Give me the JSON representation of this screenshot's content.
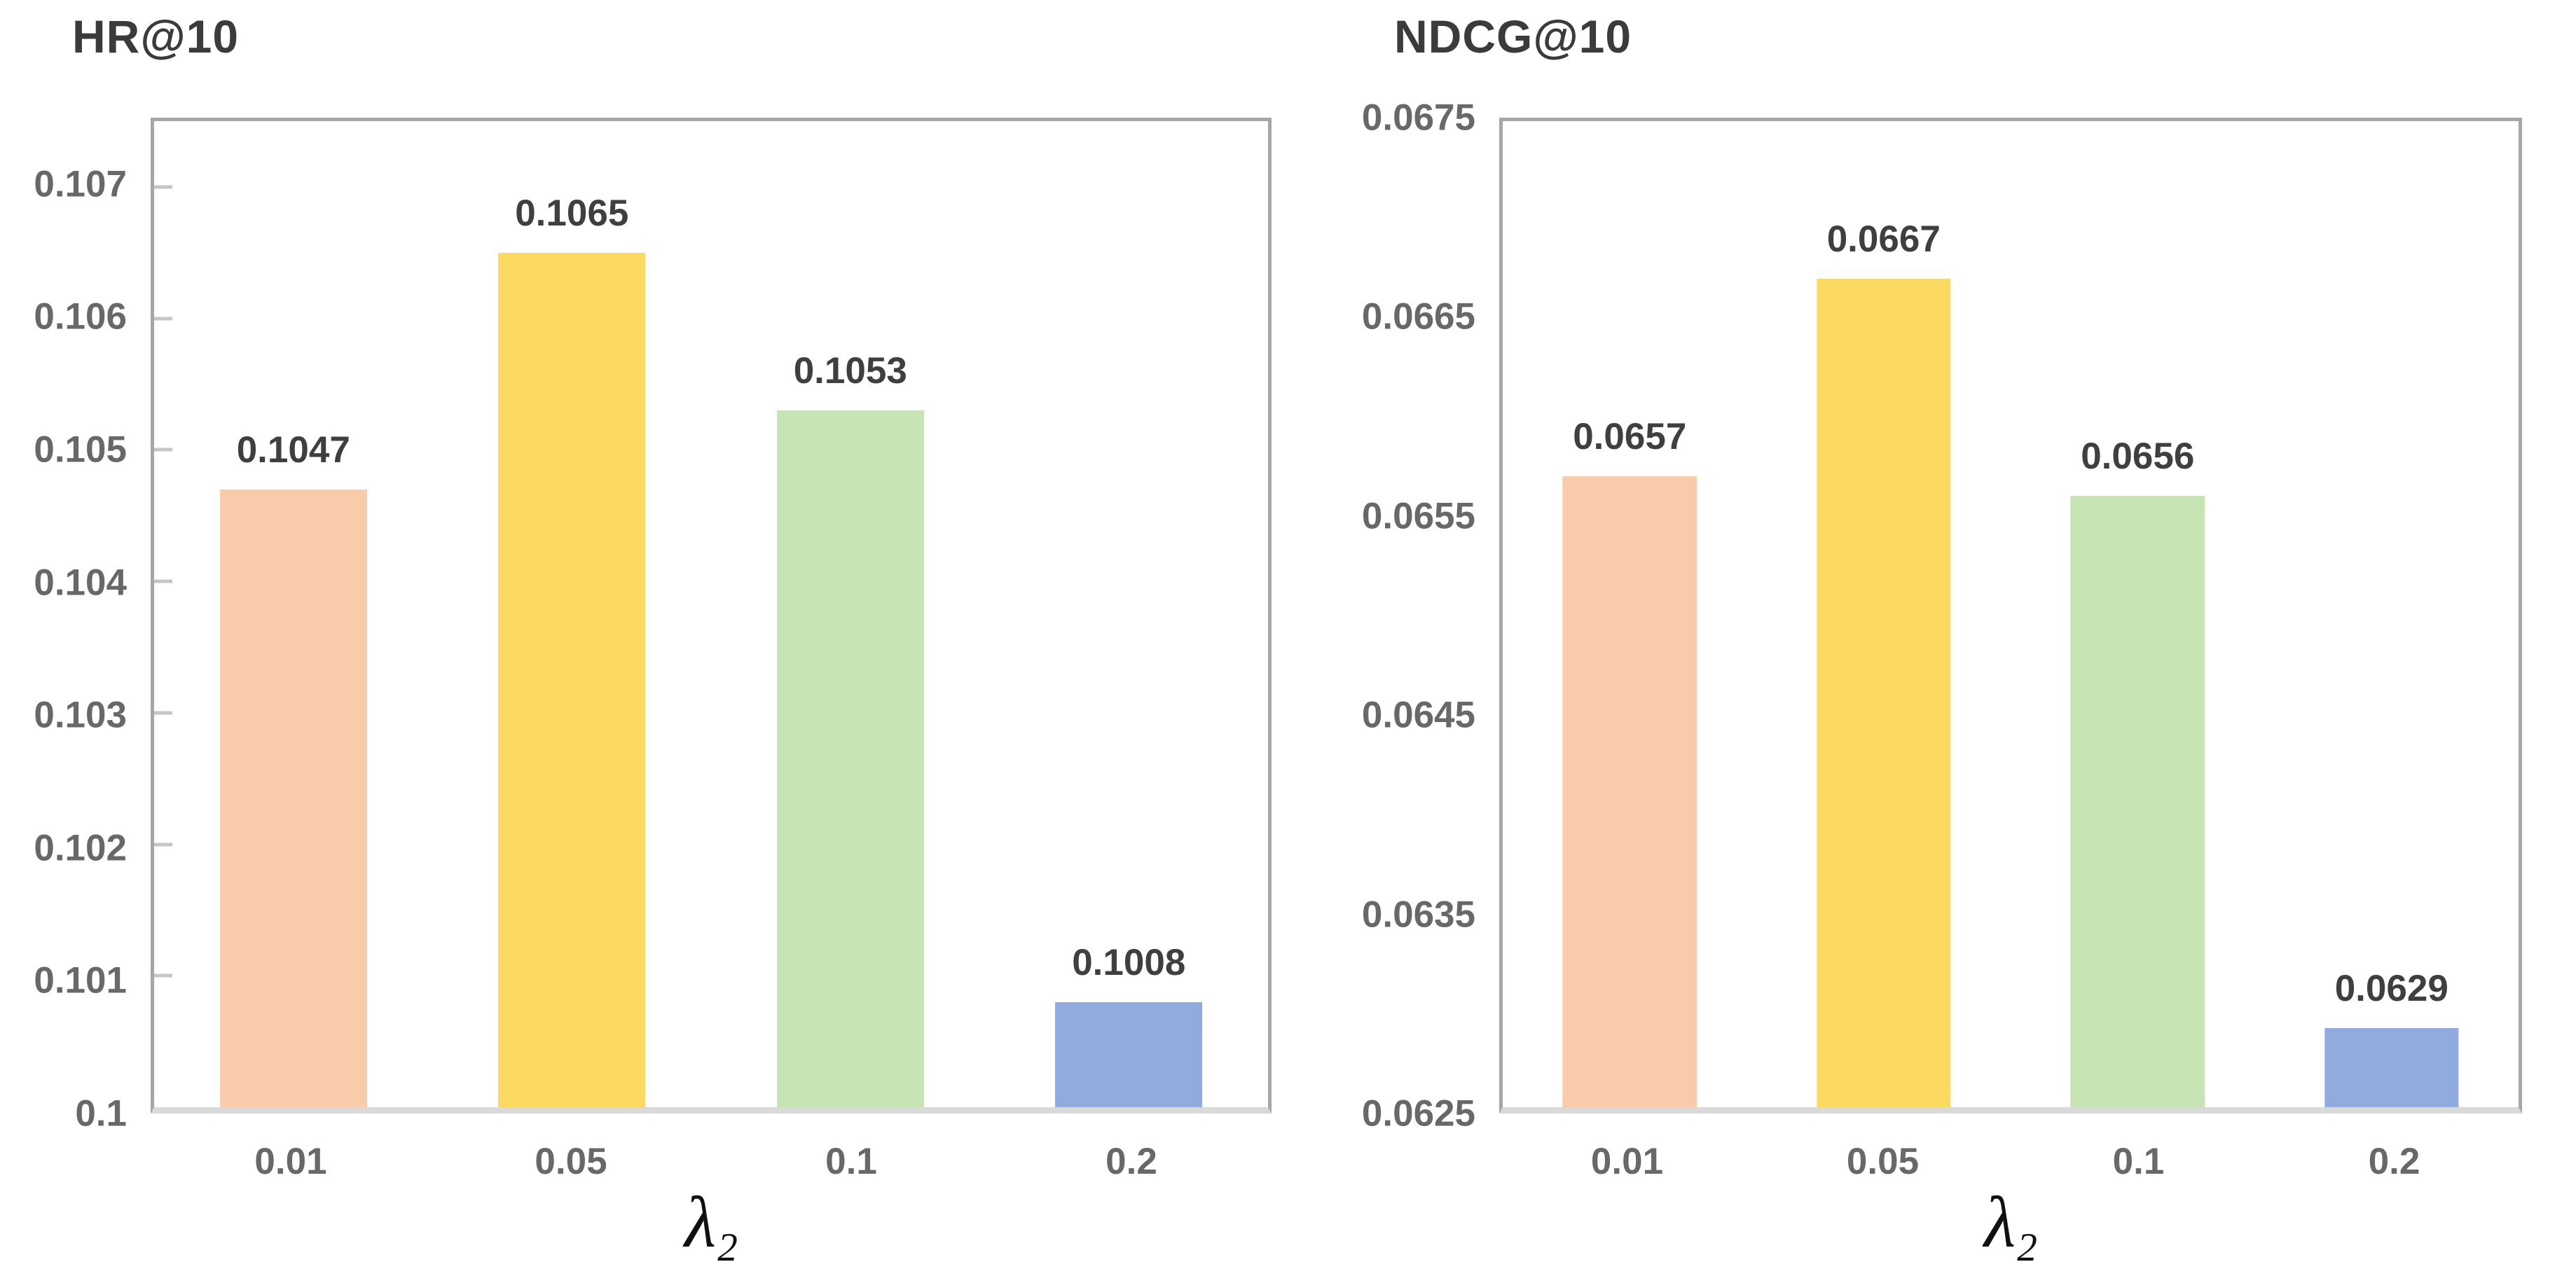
{
  "figure": {
    "background": "#ffffff"
  },
  "style": {
    "axis_box_color": "#a6a6a6",
    "baseline_color": "#d9d9d9",
    "tick_mark_color": "#c6c6c6",
    "axis_label_color": "#686868",
    "value_label_color": "#3f3f3f",
    "title_color": "#3b3b3b",
    "x_axis_title_color": "#101010"
  },
  "chart_data": [
    {
      "type": "bar",
      "title": "HR@10",
      "categories": [
        "0.01",
        "0.05",
        "0.1",
        "0.2"
      ],
      "values": [
        0.1047,
        0.1065,
        0.1053,
        0.1008
      ],
      "bar_labels": [
        "0.1047",
        "0.1065",
        "0.1053",
        "0.1008"
      ],
      "bar_colors": [
        "#f8ccab",
        "#fcd960",
        "#c8e4b4",
        "#92abdf"
      ],
      "xlabel_base": "λ",
      "xlabel_sub": "2",
      "ylim": [
        0.1,
        0.1075
      ],
      "ytick_values": [
        0.1,
        0.101,
        0.102,
        0.103,
        0.104,
        0.105,
        0.106,
        0.107
      ],
      "yticks": [
        "0.1",
        "0.101",
        "0.102",
        "0.103",
        "0.104",
        "0.105",
        "0.106",
        "0.107"
      ],
      "grid": false,
      "legend": "none",
      "tick_marks": "inside-left"
    },
    {
      "type": "bar",
      "title": "NDCG@10",
      "categories": [
        "0.01",
        "0.05",
        "0.1",
        "0.2"
      ],
      "values": [
        0.0657,
        0.0667,
        0.0656,
        0.0629
      ],
      "bar_labels": [
        "0.0657",
        "0.0667",
        "0.0656",
        "0.0629"
      ],
      "bar_colors": [
        "#f8ccab",
        "#fcd960",
        "#c8e4b4",
        "#92abdf"
      ],
      "xlabel_base": "λ",
      "xlabel_sub": "2",
      "ylim": [
        0.0625,
        0.0675
      ],
      "ytick_values": [
        0.0625,
        0.0635,
        0.0645,
        0.0655,
        0.0665,
        0.0675
      ],
      "yticks": [
        "0.0625",
        "0.0635",
        "0.0645",
        "0.0655",
        "0.0665",
        "0.0675"
      ],
      "grid": false,
      "legend": "none",
      "tick_marks": "none"
    }
  ]
}
